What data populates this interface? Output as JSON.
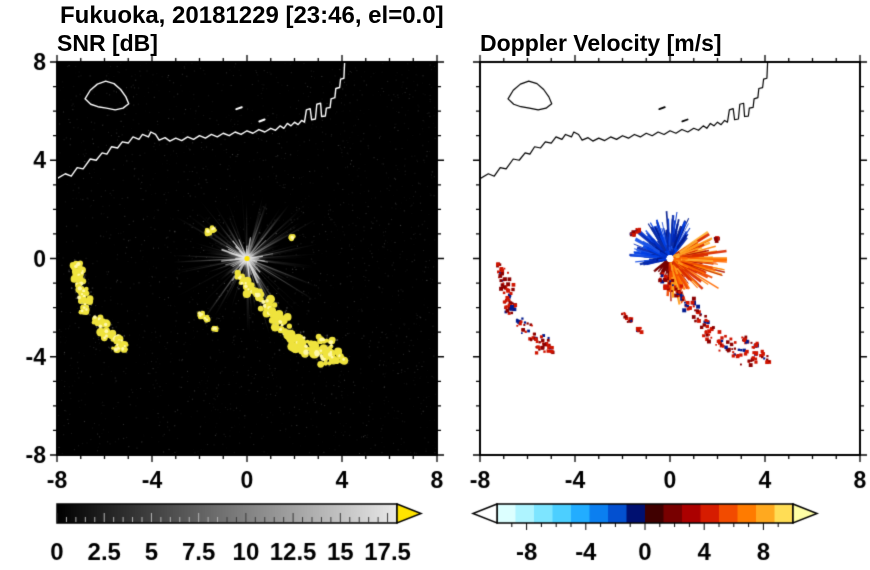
{
  "title": "Fukuoka, 20181229 [23:46, el=0.0]",
  "panels": {
    "snr": {
      "title": "SNR [dB]"
    },
    "velocity": {
      "title": "Doppler Velocity [m/s]"
    }
  },
  "chart_data": {
    "type": "heatmap",
    "subtype": "dual-panel radar PPI scan",
    "station": "Fukuoka",
    "date": "20181229",
    "time": "23:46",
    "elevation_deg": 0.0,
    "axes": {
      "xlim": [
        -8,
        8
      ],
      "ylim": [
        -8,
        8
      ],
      "xticks": [
        -8,
        -4,
        0,
        4,
        8
      ],
      "xtick_labels": [
        "-8",
        "-4",
        "0",
        "4",
        "8"
      ],
      "yticks": [
        -8,
        -4,
        0,
        4,
        8
      ],
      "ytick_labels": [
        "8",
        "4",
        "0",
        "-4",
        "-8"
      ],
      "ytick_values_top_to_bottom": [
        8,
        4,
        0,
        -4,
        -8
      ],
      "minor_tick_step": 1,
      "grid": false
    },
    "panel_list": [
      {
        "id": "snr",
        "title": "SNR [dB]",
        "background": "#000000",
        "coast_color": "#ffffff",
        "colorbar": {
          "range": [
            0,
            18
          ],
          "ticks": [
            0,
            2.5,
            5,
            7.5,
            10,
            12.5,
            15,
            17.5
          ],
          "tick_labels": [
            "0",
            "2.5",
            "5",
            "7.5",
            "10",
            "12.5",
            "15",
            "17.5"
          ],
          "start_color": "#000000",
          "end_color": "#e9e9e9",
          "over_arrow_color": "#ffe400"
        }
      },
      {
        "id": "velocity",
        "title": "Doppler Velocity [m/s]",
        "background": "#ffffff",
        "coast_color": "#000000",
        "colorbar": {
          "range": [
            -10,
            10
          ],
          "ticks": [
            -8,
            -4,
            0,
            4,
            8
          ],
          "tick_labels": [
            "-8",
            "-4",
            "0",
            "4",
            "8"
          ],
          "segment_colors": [
            "#dcffff",
            "#aef4ff",
            "#7de5ff",
            "#4ccfff",
            "#22adff",
            "#0b7ff0",
            "#0350d0",
            "#001070",
            "#400000",
            "#780000",
            "#ab0000",
            "#d61c00",
            "#f24b00",
            "#ff7b00",
            "#ffa91f",
            "#ffdd55"
          ],
          "under_arrow_color": "#ffffff",
          "over_arrow_color": "#ffffa6"
        }
      }
    ],
    "radar_center": [
      0,
      0
    ],
    "snr_rays": {
      "count": 190,
      "max_range": 3.6,
      "center_dot_color": "#ffe400",
      "echo_color": "#efe33d",
      "echo_highlight": "#fff8a8"
    },
    "doppler_fan": {
      "toward_sector_deg": [
        50,
        195
      ],
      "away_sector_deg": [
        -95,
        35
      ],
      "dark_red_sector_deg": [
        -150,
        -95
      ],
      "max_range": 2.4,
      "toward_colors": [
        "#001a8c",
        "#0026b3",
        "#0033cc",
        "#0040e6",
        "#1a53e6",
        "#0d2fa6"
      ],
      "away_colors": [
        "#ff8000",
        "#ff9b1a",
        "#ff6a00",
        "#f04800",
        "#d92b00",
        "#b31500",
        "#ffb133"
      ],
      "dark_red_color": "#7a0000",
      "center_color": "#ffffff"
    },
    "doppler_echo_colors": [
      "#d01400",
      "#8b0000",
      "#001b8f"
    ],
    "coastline": {
      "mainland": [
        [
          -8.0,
          3.25
        ],
        [
          -7.65,
          3.45
        ],
        [
          -7.4,
          3.35
        ],
        [
          -7.15,
          3.7
        ],
        [
          -6.9,
          3.65
        ],
        [
          -6.6,
          4.05
        ],
        [
          -6.35,
          4.0
        ],
        [
          -6.1,
          4.3
        ],
        [
          -5.9,
          4.25
        ],
        [
          -5.7,
          4.55
        ],
        [
          -5.45,
          4.5
        ],
        [
          -5.25,
          4.75
        ],
        [
          -5.0,
          4.7
        ],
        [
          -4.8,
          4.95
        ],
        [
          -4.55,
          4.85
        ],
        [
          -4.4,
          5.05
        ],
        [
          -4.15,
          4.95
        ],
        [
          -4.05,
          5.15
        ],
        [
          -3.85,
          5.05
        ],
        [
          -3.7,
          4.82
        ],
        [
          -3.45,
          4.92
        ],
        [
          -3.25,
          4.78
        ],
        [
          -3.0,
          4.9
        ],
        [
          -2.75,
          4.8
        ],
        [
          -2.5,
          4.95
        ],
        [
          -2.25,
          4.85
        ],
        [
          -2.0,
          5.0
        ],
        [
          -1.75,
          4.9
        ],
        [
          -1.5,
          5.05
        ],
        [
          -1.25,
          4.95
        ],
        [
          -1.0,
          5.1
        ],
        [
          -0.75,
          5.0
        ],
        [
          -0.5,
          5.15
        ],
        [
          -0.25,
          5.05
        ],
        [
          0.0,
          5.2
        ],
        [
          0.25,
          5.1
        ],
        [
          0.5,
          5.25
        ],
        [
          0.75,
          5.15
        ],
        [
          1.0,
          5.3
        ],
        [
          1.2,
          5.22
        ],
        [
          1.4,
          5.4
        ],
        [
          1.55,
          5.3
        ],
        [
          1.7,
          5.5
        ],
        [
          1.85,
          5.4
        ],
        [
          2.0,
          5.55
        ],
        [
          2.15,
          5.45
        ],
        [
          2.3,
          5.62
        ],
        [
          2.42,
          5.55
        ],
        [
          2.5,
          6.05
        ],
        [
          2.66,
          6.1
        ],
        [
          2.72,
          5.65
        ],
        [
          2.88,
          5.68
        ],
        [
          2.94,
          6.28
        ],
        [
          3.1,
          6.32
        ],
        [
          3.14,
          5.78
        ],
        [
          3.3,
          5.8
        ],
        [
          3.34,
          6.12
        ],
        [
          3.5,
          6.15
        ],
        [
          3.54,
          6.5
        ],
        [
          3.7,
          6.55
        ],
        [
          3.74,
          6.92
        ],
        [
          3.9,
          6.96
        ],
        [
          3.94,
          7.3
        ],
        [
          4.08,
          7.34
        ],
        [
          4.12,
          8.2
        ]
      ],
      "island": [
        [
          -6.82,
          6.5
        ],
        [
          -6.6,
          6.85
        ],
        [
          -6.3,
          7.1
        ],
        [
          -5.95,
          7.22
        ],
        [
          -5.6,
          7.12
        ],
        [
          -5.32,
          6.88
        ],
        [
          -5.1,
          6.58
        ],
        [
          -4.98,
          6.3
        ],
        [
          -5.22,
          6.12
        ],
        [
          -5.55,
          6.05
        ],
        [
          -5.92,
          6.12
        ],
        [
          -6.28,
          6.18
        ],
        [
          -6.58,
          6.28
        ],
        [
          -6.82,
          6.5
        ]
      ],
      "islets": [
        [
          [
            -0.45,
            6.08
          ],
          [
            -0.22,
            6.16
          ]
        ],
        [
          [
            0.52,
            5.58
          ],
          [
            0.74,
            5.66
          ]
        ]
      ]
    },
    "echo_regions": [
      {
        "name": "west-cluster",
        "points": [
          [
            -7.2,
            -0.3,
            0.16
          ],
          [
            -7.05,
            -0.62,
            0.18
          ],
          [
            -7.1,
            -0.95,
            0.17
          ],
          [
            -6.9,
            -1.2,
            0.19
          ],
          [
            -6.95,
            -1.55,
            0.17
          ],
          [
            -6.75,
            -1.82,
            0.16
          ],
          [
            -6.85,
            -2.05,
            0.13
          ],
          [
            -6.3,
            -2.5,
            0.17
          ],
          [
            -6.05,
            -2.8,
            0.19
          ],
          [
            -5.85,
            -3.1,
            0.18
          ],
          [
            -5.55,
            -3.2,
            0.15
          ],
          [
            -5.3,
            -3.35,
            0.14
          ],
          [
            -5.5,
            -3.6,
            0.15
          ],
          [
            -5.15,
            -3.62,
            0.12
          ]
        ]
      },
      {
        "name": "southeast-chain",
        "points": [
          [
            -0.35,
            -0.72,
            0.14
          ],
          [
            -0.1,
            -1.0,
            0.17
          ],
          [
            0.2,
            -1.25,
            0.19
          ],
          [
            0.5,
            -1.5,
            0.2
          ],
          [
            0.75,
            -1.8,
            0.22
          ],
          [
            0.95,
            -2.12,
            0.2
          ],
          [
            1.25,
            -2.32,
            0.22
          ],
          [
            1.45,
            -2.6,
            0.24
          ],
          [
            1.55,
            -2.95,
            0.22
          ],
          [
            1.85,
            -3.2,
            0.26
          ],
          [
            2.2,
            -3.45,
            0.28
          ],
          [
            2.55,
            -3.62,
            0.26
          ],
          [
            2.9,
            -3.85,
            0.27
          ],
          [
            3.25,
            -4.02,
            0.25
          ],
          [
            3.6,
            -3.92,
            0.2
          ],
          [
            3.95,
            -4.05,
            0.16
          ],
          [
            3.5,
            -3.45,
            0.14
          ],
          [
            3.15,
            -3.28,
            0.12
          ]
        ]
      },
      {
        "name": "small-streaks",
        "points": [
          [
            -1.95,
            -2.28,
            0.09
          ],
          [
            -1.72,
            -2.45,
            0.08
          ],
          [
            -1.35,
            -2.85,
            0.07
          ],
          [
            -1.62,
            1.08,
            0.07
          ],
          [
            -1.42,
            1.2,
            0.06
          ],
          [
            1.9,
            0.85,
            0.06
          ]
        ]
      }
    ]
  }
}
